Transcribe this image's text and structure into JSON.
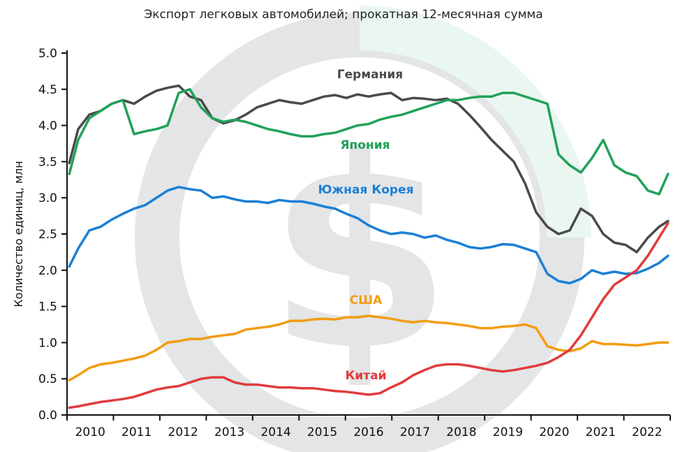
{
  "chart_data": {
    "type": "line",
    "title": "Экспорт легковых автомобилей; прокатная 12-месячная сумма",
    "ylabel": "Количество единиц, млн",
    "xlabel": "",
    "ylim": [
      0,
      5
    ],
    "xlim": [
      2009.5,
      2023
    ],
    "yticks": [
      "0.0",
      "0.5",
      "1.0",
      "1.5",
      "2.0",
      "2.5",
      "3.0",
      "3.5",
      "4.0",
      "4.5",
      "5.0"
    ],
    "ytick_values": [
      0,
      0.5,
      1,
      1.5,
      2,
      2.5,
      3,
      3.5,
      4,
      4.5,
      5
    ],
    "xticks": [
      "2010",
      "2011",
      "2012",
      "2013",
      "2014",
      "2015",
      "2016",
      "2017",
      "2018",
      "2019",
      "2020",
      "2021",
      "2022"
    ],
    "grid": false,
    "legend": "inline labels",
    "series": [
      {
        "name": "Германия",
        "color": "#4a4a4a",
        "x": [
          2009.55,
          2009.75,
          2010.0,
          2010.25,
          2010.5,
          2010.75,
          2011.0,
          2011.25,
          2011.5,
          2011.75,
          2012.0,
          2012.25,
          2012.5,
          2012.75,
          2013.0,
          2013.25,
          2013.5,
          2013.75,
          2014.0,
          2014.25,
          2014.5,
          2014.75,
          2015.0,
          2015.25,
          2015.5,
          2015.75,
          2016.0,
          2016.25,
          2016.5,
          2016.75,
          2017.0,
          2017.25,
          2017.5,
          2017.75,
          2018.0,
          2018.25,
          2018.5,
          2018.75,
          2019.0,
          2019.25,
          2019.5,
          2019.75,
          2020.0,
          2020.25,
          2020.5,
          2020.75,
          2021.0,
          2021.25,
          2021.5,
          2021.75,
          2022.0,
          2022.25,
          2022.5,
          2022.75,
          2022.95
        ],
        "values": [
          3.48,
          3.95,
          4.15,
          4.2,
          4.3,
          4.35,
          4.3,
          4.4,
          4.48,
          4.52,
          4.55,
          4.4,
          4.35,
          4.1,
          4.03,
          4.07,
          4.15,
          4.25,
          4.3,
          4.35,
          4.32,
          4.3,
          4.35,
          4.4,
          4.42,
          4.38,
          4.43,
          4.4,
          4.43,
          4.45,
          4.35,
          4.38,
          4.37,
          4.35,
          4.37,
          4.3,
          4.15,
          3.98,
          3.8,
          3.65,
          3.5,
          3.2,
          2.8,
          2.6,
          2.5,
          2.55,
          2.85,
          2.75,
          2.5,
          2.38,
          2.35,
          2.25,
          2.45,
          2.6,
          2.68
        ]
      },
      {
        "name": "Япония",
        "color": "#21a15a",
        "x": [
          2009.55,
          2009.75,
          2010.0,
          2010.25,
          2010.5,
          2010.75,
          2011.0,
          2011.25,
          2011.5,
          2011.75,
          2012.0,
          2012.25,
          2012.5,
          2012.75,
          2013.0,
          2013.25,
          2013.5,
          2013.75,
          2014.0,
          2014.25,
          2014.5,
          2014.75,
          2015.0,
          2015.25,
          2015.5,
          2015.75,
          2016.0,
          2016.25,
          2016.5,
          2016.75,
          2017.0,
          2017.25,
          2017.5,
          2017.75,
          2018.0,
          2018.25,
          2018.5,
          2018.75,
          2019.0,
          2019.25,
          2019.5,
          2019.75,
          2020.0,
          2020.25,
          2020.5,
          2020.75,
          2021.0,
          2021.25,
          2021.5,
          2021.75,
          2022.0,
          2022.25,
          2022.5,
          2022.75,
          2022.95
        ],
        "values": [
          3.33,
          3.8,
          4.1,
          4.2,
          4.3,
          4.35,
          3.88,
          3.92,
          3.95,
          4.0,
          4.45,
          4.5,
          4.25,
          4.1,
          4.05,
          4.08,
          4.05,
          4.0,
          3.95,
          3.92,
          3.88,
          3.85,
          3.85,
          3.88,
          3.9,
          3.95,
          4.0,
          4.02,
          4.08,
          4.12,
          4.15,
          4.2,
          4.25,
          4.3,
          4.35,
          4.35,
          4.38,
          4.4,
          4.4,
          4.45,
          4.45,
          4.4,
          4.35,
          4.3,
          3.6,
          3.45,
          3.35,
          3.55,
          3.8,
          3.45,
          3.35,
          3.3,
          3.1,
          3.05,
          3.33
        ]
      },
      {
        "name": "Южная Корея",
        "color": "#1b7fd6",
        "x": [
          2009.55,
          2009.75,
          2010.0,
          2010.25,
          2010.5,
          2010.75,
          2011.0,
          2011.25,
          2011.5,
          2011.75,
          2012.0,
          2012.25,
          2012.5,
          2012.75,
          2013.0,
          2013.25,
          2013.5,
          2013.75,
          2014.0,
          2014.25,
          2014.5,
          2014.75,
          2015.0,
          2015.25,
          2015.5,
          2015.75,
          2016.0,
          2016.25,
          2016.5,
          2016.75,
          2017.0,
          2017.25,
          2017.5,
          2017.75,
          2018.0,
          2018.25,
          2018.5,
          2018.75,
          2019.0,
          2019.25,
          2019.5,
          2019.75,
          2020.0,
          2020.25,
          2020.5,
          2020.75,
          2021.0,
          2021.25,
          2021.5,
          2021.75,
          2022.0,
          2022.25,
          2022.5,
          2022.75,
          2022.95
        ],
        "values": [
          2.05,
          2.3,
          2.55,
          2.6,
          2.7,
          2.78,
          2.85,
          2.9,
          3.0,
          3.1,
          3.15,
          3.12,
          3.1,
          3.0,
          3.02,
          2.98,
          2.95,
          2.95,
          2.93,
          2.97,
          2.95,
          2.95,
          2.92,
          2.88,
          2.85,
          2.78,
          2.72,
          2.62,
          2.55,
          2.5,
          2.52,
          2.5,
          2.45,
          2.48,
          2.42,
          2.38,
          2.32,
          2.3,
          2.32,
          2.36,
          2.35,
          2.3,
          2.25,
          1.95,
          1.85,
          1.82,
          1.88,
          2.0,
          1.95,
          1.98,
          1.95,
          1.96,
          2.02,
          2.1,
          2.2
        ]
      },
      {
        "name": "США",
        "color": "#f39c12",
        "x": [
          2009.55,
          2009.75,
          2010.0,
          2010.25,
          2010.5,
          2010.75,
          2011.0,
          2011.25,
          2011.5,
          2011.75,
          2012.0,
          2012.25,
          2012.5,
          2012.75,
          2013.0,
          2013.25,
          2013.5,
          2013.75,
          2014.0,
          2014.25,
          2014.5,
          2014.75,
          2015.0,
          2015.25,
          2015.5,
          2015.75,
          2016.0,
          2016.25,
          2016.5,
          2016.75,
          2017.0,
          2017.25,
          2017.5,
          2017.75,
          2018.0,
          2018.25,
          2018.5,
          2018.75,
          2019.0,
          2019.25,
          2019.5,
          2019.75,
          2020.0,
          2020.25,
          2020.5,
          2020.75,
          2021.0,
          2021.25,
          2021.5,
          2021.75,
          2022.0,
          2022.25,
          2022.5,
          2022.75,
          2022.95
        ],
        "values": [
          0.48,
          0.55,
          0.65,
          0.7,
          0.72,
          0.75,
          0.78,
          0.82,
          0.9,
          1.0,
          1.02,
          1.05,
          1.05,
          1.08,
          1.1,
          1.12,
          1.18,
          1.2,
          1.22,
          1.25,
          1.3,
          1.3,
          1.32,
          1.33,
          1.32,
          1.35,
          1.35,
          1.37,
          1.35,
          1.33,
          1.3,
          1.28,
          1.3,
          1.28,
          1.27,
          1.25,
          1.23,
          1.2,
          1.2,
          1.22,
          1.23,
          1.25,
          1.2,
          0.95,
          0.9,
          0.88,
          0.92,
          1.02,
          0.98,
          0.98,
          0.97,
          0.96,
          0.98,
          1.0,
          1.0
        ]
      },
      {
        "name": "Китай",
        "color": "#e03c3c",
        "x": [
          2009.55,
          2009.75,
          2010.0,
          2010.25,
          2010.5,
          2010.75,
          2011.0,
          2011.25,
          2011.5,
          2011.75,
          2012.0,
          2012.25,
          2012.5,
          2012.75,
          2013.0,
          2013.25,
          2013.5,
          2013.75,
          2014.0,
          2014.25,
          2014.5,
          2014.75,
          2015.0,
          2015.25,
          2015.5,
          2015.75,
          2016.0,
          2016.25,
          2016.5,
          2016.75,
          2017.0,
          2017.25,
          2017.5,
          2017.75,
          2018.0,
          2018.25,
          2018.5,
          2018.75,
          2019.0,
          2019.25,
          2019.5,
          2019.75,
          2020.0,
          2020.25,
          2020.5,
          2020.75,
          2021.0,
          2021.25,
          2021.5,
          2021.75,
          2022.0,
          2022.25,
          2022.5,
          2022.75,
          2022.95
        ],
        "values": [
          0.1,
          0.12,
          0.15,
          0.18,
          0.2,
          0.22,
          0.25,
          0.3,
          0.35,
          0.38,
          0.4,
          0.45,
          0.5,
          0.52,
          0.52,
          0.45,
          0.42,
          0.42,
          0.4,
          0.38,
          0.38,
          0.37,
          0.37,
          0.35,
          0.33,
          0.32,
          0.3,
          0.28,
          0.3,
          0.38,
          0.45,
          0.55,
          0.62,
          0.68,
          0.7,
          0.7,
          0.68,
          0.65,
          0.62,
          0.6,
          0.62,
          0.65,
          0.68,
          0.72,
          0.8,
          0.9,
          1.1,
          1.35,
          1.6,
          1.8,
          1.9,
          2.0,
          2.2,
          2.45,
          2.65
        ]
      }
    ]
  }
}
